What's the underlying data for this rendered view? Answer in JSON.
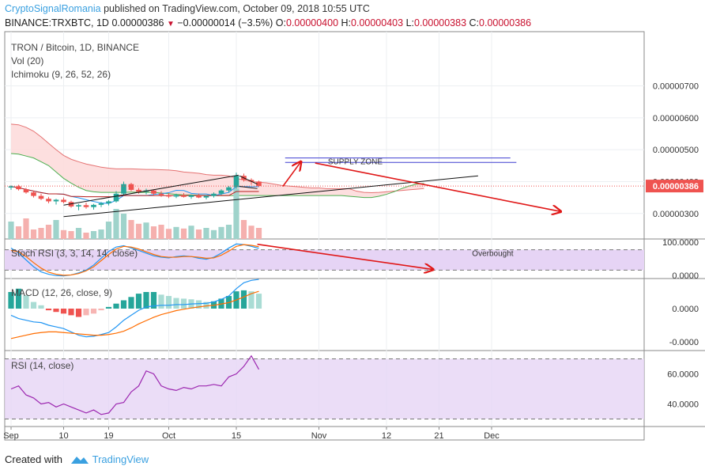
{
  "header": {
    "author": "CryptoSignalRomania",
    "published_text": " published on TradingView.com, October 09, 2018 10:55 UTC",
    "symbol": "BINANCE:TRXBTC, 1D",
    "last": "0.00000386",
    "change": "−0.00000014 (−3.5%)",
    "o_label": "O:",
    "o_value": "0.00000400",
    "h_label": "H:",
    "h_value": "0.00000403",
    "l_label": "L:",
    "l_value": "0.00000383",
    "c_label": "C:",
    "c_value": "0.00000386"
  },
  "legends": {
    "main_title": "TRON / Bitcoin, 1D, BINANCE",
    "vol": "Vol (20)",
    "ichimoku": "Ichimoku (9, 26, 52, 26)",
    "stoch": "Stoch RSI (3, 3, 14, 14, close)",
    "macd": "MACD (12, 26, close, 9)",
    "rsi": "RSI (14, close)"
  },
  "annotations": {
    "supply_zone": "SUPPLY ZONE",
    "overbought": "Overbought"
  },
  "price_label": "0.00000386",
  "footer": {
    "created_with": "Created with",
    "brand": "TradingView"
  },
  "colors": {
    "up": "#26a69a",
    "down": "#ef5350",
    "cloud": "#fddcdc",
    "span_a": "#4caf50",
    "span_b": "#e57373",
    "arrow": "#e01818",
    "zone_line": "#3f3fd0",
    "osc_fill": "#e6d4f5",
    "rsi_line": "#9c27b0",
    "macd_line": "#2196f3",
    "signal_line": "#ff6d00"
  },
  "chart_data": {
    "type": "candlestick",
    "panes": [
      {
        "name": "price",
        "title": "TRON / Bitcoin, 1D, BINANCE",
        "y_ticks": [
          3e-06,
          4e-06,
          5e-06,
          6e-06,
          7e-06
        ],
        "y_tick_labels": [
          "0.00000300",
          "0.00000400",
          "0.00000500",
          "0.00000600",
          "0.00000700"
        ],
        "ylim": [
          2.2e-06,
          8.7e-06
        ],
        "current_price": 3.86e-06,
        "x_ticks": [
          0,
          7,
          14,
          21,
          28,
          35,
          42,
          49,
          56,
          63,
          70
        ],
        "x_tick_labels": [
          "Sep",
          "10",
          "19",
          "Oct",
          "15",
          "Nov",
          "12",
          "21",
          "Dec"
        ],
        "x_tick_positions": [
          0,
          7,
          13,
          21,
          30,
          41,
          50,
          57,
          64
        ],
        "candles": [
          [
            3.82,
            3.88,
            3.74,
            3.85
          ],
          [
            3.85,
            3.9,
            3.72,
            3.76
          ],
          [
            3.76,
            3.8,
            3.62,
            3.66
          ],
          [
            3.66,
            3.72,
            3.5,
            3.55
          ],
          [
            3.55,
            3.62,
            3.42,
            3.46
          ],
          [
            3.46,
            3.52,
            3.32,
            3.38
          ],
          [
            3.38,
            3.46,
            3.28,
            3.43
          ],
          [
            3.43,
            3.5,
            3.32,
            3.36
          ],
          [
            3.36,
            3.4,
            3.18,
            3.22
          ],
          [
            3.22,
            3.3,
            3.1,
            3.26
          ],
          [
            3.26,
            3.34,
            3.15,
            3.2
          ],
          [
            3.2,
            3.3,
            3.12,
            3.27
          ],
          [
            3.27,
            3.36,
            3.2,
            3.32
          ],
          [
            3.32,
            3.42,
            3.25,
            3.38
          ],
          [
            3.38,
            3.7,
            3.34,
            3.62
          ],
          [
            3.62,
            4.0,
            3.56,
            3.92
          ],
          [
            3.92,
            3.96,
            3.7,
            3.74
          ],
          [
            3.74,
            3.8,
            3.62,
            3.68
          ],
          [
            3.68,
            3.78,
            3.6,
            3.72
          ],
          [
            3.72,
            3.75,
            3.58,
            3.62
          ],
          [
            3.62,
            3.7,
            3.52,
            3.58
          ],
          [
            3.58,
            3.64,
            3.48,
            3.53
          ],
          [
            3.53,
            3.62,
            3.48,
            3.58
          ],
          [
            3.58,
            3.64,
            3.5,
            3.52
          ],
          [
            3.52,
            3.6,
            3.46,
            3.57
          ],
          [
            3.57,
            3.62,
            3.48,
            3.5
          ],
          [
            3.5,
            3.58,
            3.44,
            3.55
          ],
          [
            3.55,
            3.66,
            3.5,
            3.62
          ],
          [
            3.62,
            3.76,
            3.58,
            3.72
          ],
          [
            3.72,
            3.86,
            3.66,
            3.82
          ],
          [
            3.82,
            4.28,
            3.78,
            4.18
          ],
          [
            4.18,
            4.25,
            4.0,
            4.05
          ],
          [
            4.05,
            4.1,
            3.9,
            4.0
          ],
          [
            4.0,
            4.03,
            3.83,
            3.86
          ]
        ],
        "volume": [
          55,
          40,
          65,
          30,
          35,
          45,
          60,
          28,
          25,
          35,
          20,
          25,
          30,
          55,
          95,
          80,
          60,
          48,
          52,
          40,
          45,
          32,
          38,
          33,
          42,
          30,
          35,
          28,
          38,
          45,
          160,
          60,
          42,
          35
        ],
        "volume_up": [
          true,
          false,
          false,
          false,
          false,
          false,
          true,
          false,
          false,
          true,
          false,
          true,
          true,
          true,
          true,
          true,
          false,
          false,
          true,
          false,
          false,
          false,
          true,
          false,
          true,
          false,
          true,
          true,
          true,
          true,
          true,
          false,
          false,
          false
        ]
      },
      {
        "name": "stoch_rsi",
        "title": "Stoch RSI (3, 3, 14, 14, close)",
        "y_tick_labels": [
          "100.0000",
          "0.0000"
        ],
        "ylim": [
          0,
          100
        ],
        "bands": [
          80,
          20
        ],
        "k": [
          85,
          70,
          50,
          30,
          15,
          8,
          4,
          3,
          6,
          12,
          20,
          35,
          55,
          75,
          88,
          92,
          85,
          78,
          70,
          62,
          58,
          56,
          60,
          62,
          60,
          55,
          52,
          58,
          70,
          85,
          97,
          95,
          90,
          84
        ],
        "d": [
          78,
          74,
          60,
          42,
          26,
          14,
          8,
          5,
          6,
          10,
          18,
          30,
          48,
          66,
          82,
          90,
          88,
          82,
          74,
          66,
          60,
          58,
          58,
          60,
          60,
          58,
          55,
          56,
          64,
          76,
          90,
          95,
          93,
          89
        ]
      },
      {
        "name": "macd",
        "title": "MACD (12, 26, close, 9)",
        "y_tick_labels": [
          "0.0000",
          "-0.0000"
        ],
        "hist": [
          0.5,
          0.6,
          0.4,
          0.2,
          0.1,
          -0.05,
          -0.1,
          -0.15,
          -0.2,
          -0.25,
          -0.2,
          -0.15,
          -0.05,
          0.05,
          0.15,
          0.25,
          0.35,
          0.45,
          0.5,
          0.5,
          0.42,
          0.38,
          0.32,
          0.3,
          0.28,
          0.25,
          0.2,
          0.22,
          0.3,
          0.38,
          0.52,
          0.55,
          0.52,
          0.45
        ],
        "macd": [
          -0.2,
          -0.3,
          -0.35,
          -0.4,
          -0.42,
          -0.5,
          -0.55,
          -0.6,
          -0.7,
          -0.8,
          -0.85,
          -0.83,
          -0.78,
          -0.72,
          -0.55,
          -0.35,
          -0.2,
          -0.05,
          0.05,
          0.08,
          0.1,
          0.1,
          0.12,
          0.12,
          0.14,
          0.15,
          0.16,
          0.2,
          0.28,
          0.38,
          0.6,
          0.78,
          0.85,
          0.88
        ],
        "signal": [
          -0.9,
          -0.85,
          -0.8,
          -0.75,
          -0.72,
          -0.7,
          -0.7,
          -0.72,
          -0.74,
          -0.76,
          -0.78,
          -0.8,
          -0.8,
          -0.78,
          -0.74,
          -0.68,
          -0.58,
          -0.46,
          -0.36,
          -0.26,
          -0.18,
          -0.12,
          -0.06,
          -0.02,
          0.02,
          0.05,
          0.08,
          0.1,
          0.14,
          0.18,
          0.26,
          0.35,
          0.45,
          0.52
        ]
      },
      {
        "name": "rsi",
        "title": "RSI (14, close)",
        "y_tick_labels": [
          "60.0000",
          "40.0000"
        ],
        "ylim": [
          25,
          75
        ],
        "bands": [
          70,
          30
        ],
        "values": [
          50,
          52,
          46,
          44,
          40,
          41,
          38,
          40,
          38,
          36,
          34,
          36,
          33,
          34,
          40,
          41,
          48,
          52,
          62,
          60,
          52,
          50,
          49,
          51,
          50,
          52,
          52,
          53,
          52,
          58,
          60,
          65,
          72,
          63
        ]
      }
    ],
    "annotations": [
      {
        "type": "trend_line",
        "from": {
          "x": 7,
          "price": 3.26e-06
        },
        "to": {
          "x": 30,
          "price": 4.2e-06
        }
      },
      {
        "type": "trend_line",
        "from": {
          "x": 7,
          "price": 2.9e-06
        },
        "to": {
          "x": 46,
          "price": 4.2e-06
        }
      },
      {
        "type": "horizontal",
        "label": "SUPPLY ZONE",
        "prices": [
          4.74e-06,
          4.6e-06
        ]
      },
      {
        "type": "arrow",
        "direction": "up"
      },
      {
        "type": "arrow",
        "direction": "down"
      },
      {
        "type": "arrow",
        "direction": "down",
        "pane": "stoch_rsi"
      },
      {
        "type": "label",
        "text": "Overbought",
        "pane": "stoch_rsi"
      }
    ]
  }
}
